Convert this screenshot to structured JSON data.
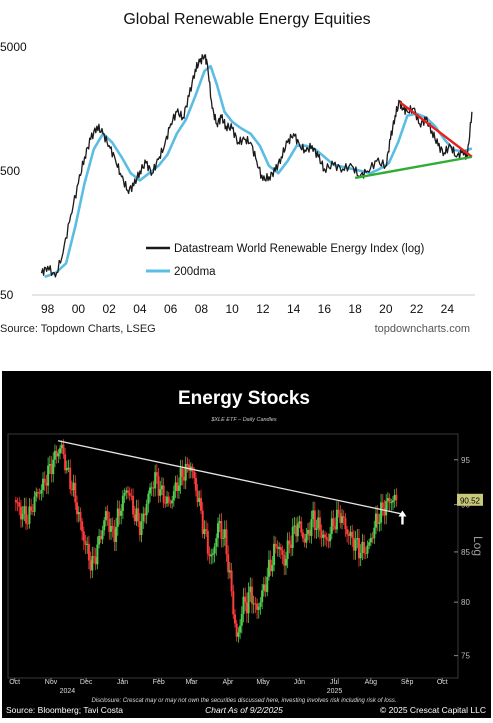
{
  "chart_data": [
    {
      "type": "line",
      "title": "Global Renewable Energy Equities",
      "scale": "log",
      "ylim": [
        50,
        5000
      ],
      "y_ticks": [
        "5000",
        "500",
        "50"
      ],
      "x_ticks": [
        "98",
        "00",
        "02",
        "04",
        "06",
        "08",
        "10",
        "12",
        "14",
        "16",
        "18",
        "20",
        "22",
        "24"
      ],
      "xlim": [
        1997.5,
        2025.8
      ],
      "legend": [
        {
          "label": "Datastream World Renewable Energy Index (log)",
          "color": "#1a1a1a"
        },
        {
          "label": "200dma",
          "color": "#5bbde4"
        }
      ],
      "source": "Source: Topdown Charts, LSEG",
      "watermark": "topdowncharts.com",
      "series": [
        {
          "name": "Datastream World Renewable Energy Index (log)",
          "x": [
            1997.6,
            1998.0,
            1998.5,
            1999.0,
            1999.5,
            2000.0,
            2000.4,
            2000.8,
            2001.2,
            2001.6,
            2002.0,
            2002.4,
            2002.8,
            2003.2,
            2003.6,
            2004.0,
            2004.4,
            2004.8,
            2005.2,
            2005.6,
            2006.0,
            2006.4,
            2006.8,
            2007.2,
            2007.6,
            2007.9,
            2008.2,
            2008.4,
            2008.7,
            2009.0,
            2009.3,
            2009.6,
            2010.0,
            2010.4,
            2010.8,
            2011.2,
            2011.6,
            2012.0,
            2012.4,
            2012.8,
            2013.2,
            2013.6,
            2014.0,
            2014.4,
            2014.8,
            2015.2,
            2015.6,
            2016.0,
            2016.6,
            2017.2,
            2017.8,
            2018.3,
            2018.8,
            2019.4,
            2020.0,
            2020.3,
            2020.6,
            2020.9,
            2021.1,
            2021.4,
            2021.8,
            2022.2,
            2022.6,
            2023.0,
            2023.4,
            2023.8,
            2024.2,
            2024.6,
            2025.0,
            2025.3,
            2025.6
          ],
          "values": [
            75,
            85,
            70,
            110,
            220,
            400,
            650,
            900,
            1150,
            1000,
            800,
            620,
            450,
            350,
            380,
            500,
            580,
            480,
            620,
            800,
            1200,
            1500,
            1350,
            2000,
            3300,
            3800,
            4300,
            3600,
            1600,
            1200,
            1350,
            1150,
            1100,
            850,
            900,
            850,
            600,
            420,
            450,
            500,
            650,
            850,
            1000,
            800,
            720,
            800,
            650,
            520,
            560,
            520,
            550,
            450,
            500,
            600,
            550,
            900,
            1400,
            1800,
            1600,
            1500,
            1600,
            1200,
            1300,
            1050,
            800,
            700,
            800,
            650,
            720,
            650,
            1500
          ]
        },
        {
          "name": "200dma",
          "x": [
            1997.8,
            1998.5,
            1999.2,
            1999.8,
            2000.4,
            2001.0,
            2001.6,
            2002.2,
            2002.8,
            2003.4,
            2004.0,
            2004.6,
            2005.2,
            2005.8,
            2006.4,
            2007.0,
            2007.6,
            2008.2,
            2008.6,
            2009.0,
            2009.5,
            2010.0,
            2010.6,
            2011.2,
            2011.8,
            2012.4,
            2013.0,
            2013.6,
            2014.2,
            2014.8,
            2015.4,
            2016.0,
            2016.6,
            2017.2,
            2017.8,
            2018.4,
            2019.0,
            2019.6,
            2020.2,
            2020.8,
            2021.4,
            2022.0,
            2022.6,
            2023.2,
            2023.8,
            2024.4,
            2025.0,
            2025.6
          ],
          "values": [
            70,
            75,
            90,
            180,
            400,
            750,
            1000,
            850,
            650,
            480,
            420,
            480,
            550,
            680,
            1000,
            1300,
            2000,
            3200,
            3500,
            2500,
            1500,
            1250,
            1100,
            1000,
            800,
            550,
            480,
            600,
            800,
            800,
            750,
            650,
            560,
            540,
            520,
            500,
            480,
            520,
            580,
            850,
            1400,
            1450,
            1350,
            1150,
            900,
            740,
            720,
            760
          ]
        }
      ],
      "annotations": [
        {
          "type": "trendline",
          "color": "#e8201d",
          "from": [
            2020.9,
            1800
          ],
          "to": [
            2025.6,
            650
          ]
        },
        {
          "type": "trendline",
          "color": "#2fad35",
          "from": [
            2018.0,
            440
          ],
          "to": [
            2025.6,
            650
          ]
        }
      ]
    },
    {
      "type": "candlestick",
      "title": "Energy Stocks",
      "subtitle": "$XLE ETF – Daily Candles",
      "scale": "log",
      "ylim": [
        73,
        98
      ],
      "y_ticks": [
        75,
        80,
        85,
        90,
        95
      ],
      "ylabel": "Log",
      "last_price_label": "90.52",
      "x_ticks": [
        "Oct",
        "Nov",
        "Dec",
        "Jan",
        "Feb",
        "Mar",
        "Apr",
        "May",
        "Jun",
        "Jul",
        "Aug",
        "Sep",
        "Oct"
      ],
      "x_ticks_days": [
        0,
        31,
        61,
        92,
        123,
        151,
        182,
        212,
        243,
        273,
        304,
        335,
        365
      ],
      "year_labels": [
        {
          "label": "2024",
          "day": 45
        },
        {
          "label": "2025",
          "day": 273
        }
      ],
      "disclaimer": "Disclosure: Crescat may or may not own the securities discussed here, investing involves risk including risk of loss.",
      "footer_left": "Source: Bloomberg; Tavi Costa",
      "footer_center": "Chart As of 9/2/2025",
      "footer_right": "© 2025 Crescat Capital LLC",
      "close_series": {
        "days": [
          0,
          6,
          12,
          18,
          24,
          30,
          36,
          40,
          44,
          50,
          56,
          62,
          66,
          72,
          78,
          84,
          90,
          96,
          102,
          108,
          114,
          120,
          126,
          132,
          138,
          144,
          150,
          156,
          162,
          168,
          174,
          180,
          186,
          190,
          194,
          198,
          202,
          206,
          212,
          218,
          224,
          230,
          236,
          242,
          248,
          254,
          260,
          266,
          272,
          278,
          284,
          290,
          296,
          302,
          308,
          314,
          320,
          326
        ],
        "values": [
          90.5,
          89.0,
          88.5,
          91.0,
          92.0,
          94.0,
          95.8,
          96.5,
          94.0,
          91.5,
          88.0,
          85.0,
          83.5,
          86.0,
          89.0,
          86.5,
          89.5,
          92.0,
          89.0,
          87.5,
          91.0,
          93.0,
          91.0,
          90.0,
          92.0,
          93.5,
          94.5,
          91.0,
          87.0,
          84.0,
          88.0,
          86.0,
          80.0,
          76.0,
          79.5,
          80.0,
          81.0,
          79.0,
          81.0,
          83.5,
          86.0,
          84.0,
          86.5,
          88.0,
          86.0,
          88.5,
          87.5,
          86.0,
          88.0,
          89.0,
          87.0,
          86.0,
          85.0,
          85.5,
          88.0,
          89.5,
          90.5,
          90.5
        ]
      },
      "annotations": [
        {
          "type": "trendline",
          "color": "#e6e6e6",
          "from": [
            37,
            97.2
          ],
          "to": [
            330,
            89.0
          ]
        },
        {
          "type": "arrow",
          "color": "#ffffff",
          "day": 331,
          "value": 88.5,
          "direction": "up"
        }
      ]
    }
  ]
}
